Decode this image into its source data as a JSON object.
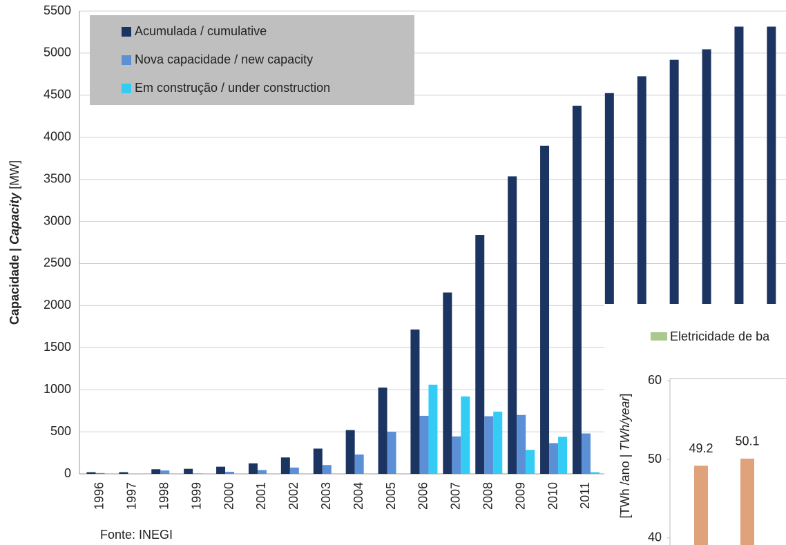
{
  "chart_data": [
    {
      "type": "bar",
      "y_label": [
        "Capacidade | ",
        "Capacity",
        " [MW]"
      ],
      "categories": [
        "1996",
        "1997",
        "1998",
        "1999",
        "2000",
        "2001",
        "2002",
        "2003",
        "2004",
        "2005",
        "2006",
        "2007",
        "2008",
        "2009",
        "2010",
        "2011",
        null,
        null,
        null,
        null,
        null,
        null
      ],
      "series": [
        {
          "name": "Acumulada / cumulative",
          "color": "#1c3461",
          "values": [
            20,
            20,
            55,
            60,
            85,
            125,
            195,
            300,
            520,
            1025,
            1715,
            2155,
            2840,
            3535,
            3900,
            4375,
            4525,
            4725,
            4920,
            5045,
            5315,
            5315
          ]
        },
        {
          "name": "Nova capacidade / new capacity",
          "color": "#5b8fd6",
          "values": [
            10,
            0,
            40,
            5,
            25,
            45,
            75,
            105,
            230,
            500,
            690,
            445,
            685,
            700,
            365,
            480,
            null,
            null,
            null,
            null,
            null,
            null
          ]
        },
        {
          "name": "Em construção / under construction",
          "color": "#33ccf5",
          "values": [
            null,
            null,
            null,
            null,
            null,
            null,
            null,
            null,
            null,
            null,
            1060,
            920,
            740,
            285,
            440,
            20,
            null,
            null,
            null,
            null,
            null,
            null
          ]
        }
      ],
      "ylim": [
        0,
        5500
      ],
      "yticks": [
        0,
        500,
        1000,
        1500,
        2000,
        2500,
        3000,
        3500,
        4000,
        4500,
        5000,
        5500
      ],
      "grid": true,
      "legend": "top-left",
      "source": "Fonte: INEGI"
    },
    {
      "type": "bar",
      "legend_entries": [
        {
          "name": "Eletricidade de ba",
          "color": "#a9c98f"
        }
      ],
      "y_label": [
        "[TWh /ano | ",
        "TWh/year",
        "]"
      ],
      "categories": [
        null,
        null
      ],
      "values": [
        49.2,
        50.1
      ],
      "value_labels": [
        "49.2",
        "50.1"
      ],
      "color": "#e0a27a",
      "ylim": [
        39.1,
        60.3
      ],
      "yticks": [
        40,
        50,
        60
      ]
    }
  ]
}
